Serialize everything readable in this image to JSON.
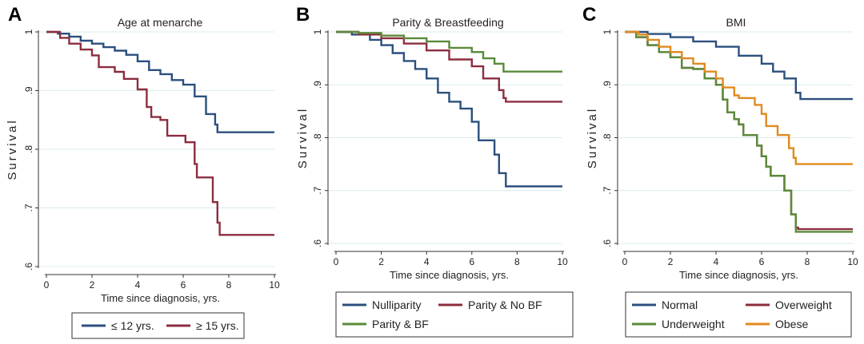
{
  "colors": {
    "navy": "#2b4f7d",
    "maroon": "#8c2d3f",
    "green": "#5a8a3a",
    "orange": "#e08a1e",
    "grid": "#d9ecec",
    "axis": "#333333",
    "text": "#222222"
  },
  "chart_data": [
    {
      "panel_letter": "A",
      "type": "line",
      "title": "Age at menarche",
      "xlabel": "Time since diagnosis, yrs.",
      "ylabel": "Survival",
      "xlim": [
        0,
        10
      ],
      "ylim": [
        0.6,
        1.0
      ],
      "xticks": [
        0,
        2,
        4,
        6,
        8,
        10
      ],
      "yticks": [
        0.6,
        0.7,
        0.8,
        0.9,
        1.0
      ],
      "ytick_labels": [
        ".6",
        ".7",
        ".8",
        ".9",
        "1"
      ],
      "grid": true,
      "legend_columns": 2,
      "series": [
        {
          "name": "≤ 12 yrs.",
          "color": "navy",
          "points": [
            [
              0,
              1.0
            ],
            [
              0.5,
              0.997
            ],
            [
              1.0,
              0.992
            ],
            [
              1.5,
              0.985
            ],
            [
              2.0,
              0.98
            ],
            [
              2.5,
              0.974
            ],
            [
              3.0,
              0.968
            ],
            [
              3.5,
              0.961
            ],
            [
              4.0,
              0.95
            ],
            [
              4.5,
              0.935
            ],
            [
              5.0,
              0.928
            ],
            [
              5.5,
              0.918
            ],
            [
              6.0,
              0.91
            ],
            [
              6.5,
              0.89
            ],
            [
              7.0,
              0.86
            ],
            [
              7.4,
              0.842
            ],
            [
              7.5,
              0.829
            ],
            [
              10.0,
              0.829
            ]
          ]
        },
        {
          "name": "≥ 15 yrs.",
          "color": "maroon",
          "points": [
            [
              0,
              1.0
            ],
            [
              0.6,
              0.99
            ],
            [
              1.0,
              0.98
            ],
            [
              1.5,
              0.97
            ],
            [
              2.0,
              0.96
            ],
            [
              2.3,
              0.94
            ],
            [
              3.0,
              0.932
            ],
            [
              3.4,
              0.92
            ],
            [
              4.0,
              0.902
            ],
            [
              4.4,
              0.872
            ],
            [
              4.6,
              0.855
            ],
            [
              5.0,
              0.85
            ],
            [
              5.3,
              0.823
            ],
            [
              6.0,
              0.823
            ],
            [
              6.1,
              0.812
            ],
            [
              6.5,
              0.775
            ],
            [
              6.6,
              0.752
            ],
            [
              7.2,
              0.752
            ],
            [
              7.3,
              0.71
            ],
            [
              7.5,
              0.675
            ],
            [
              7.6,
              0.654
            ],
            [
              10.0,
              0.654
            ]
          ]
        }
      ]
    },
    {
      "panel_letter": "B",
      "type": "line",
      "title": "Parity & Breastfeeding",
      "xlabel": "Time since diagnosis, yrs.",
      "ylabel": "Survival",
      "xlim": [
        0,
        10
      ],
      "ylim": [
        0.6,
        1.0
      ],
      "xticks": [
        0,
        2,
        4,
        6,
        8,
        10
      ],
      "yticks": [
        0.6,
        0.7,
        0.8,
        0.9,
        1.0
      ],
      "ytick_labels": [
        ".6",
        ".7",
        ".8",
        ".9",
        "1"
      ],
      "grid": true,
      "legend_columns": 2,
      "series": [
        {
          "name": "Nulliparity",
          "color": "navy",
          "points": [
            [
              0,
              1.0
            ],
            [
              0.7,
              0.995
            ],
            [
              1.5,
              0.985
            ],
            [
              2.0,
              0.975
            ],
            [
              2.5,
              0.96
            ],
            [
              3.0,
              0.945
            ],
            [
              3.5,
              0.93
            ],
            [
              4.0,
              0.912
            ],
            [
              4.5,
              0.885
            ],
            [
              5.0,
              0.868
            ],
            [
              5.5,
              0.855
            ],
            [
              6.0,
              0.83
            ],
            [
              6.3,
              0.795
            ],
            [
              6.9,
              0.795
            ],
            [
              7.0,
              0.768
            ],
            [
              7.2,
              0.733
            ],
            [
              7.4,
              0.733
            ],
            [
              7.5,
              0.708
            ],
            [
              10.0,
              0.708
            ]
          ]
        },
        {
          "name": "Parity & No BF",
          "color": "maroon",
          "points": [
            [
              0,
              1.0
            ],
            [
              1.0,
              0.995
            ],
            [
              2.0,
              0.988
            ],
            [
              3.0,
              0.978
            ],
            [
              4.0,
              0.965
            ],
            [
              5.0,
              0.948
            ],
            [
              6.0,
              0.935
            ],
            [
              6.5,
              0.912
            ],
            [
              7.2,
              0.89
            ],
            [
              7.4,
              0.875
            ],
            [
              7.5,
              0.868
            ],
            [
              10.0,
              0.868
            ]
          ]
        },
        {
          "name": "Parity & BF",
          "color": "green",
          "points": [
            [
              0,
              1.0
            ],
            [
              1.0,
              0.998
            ],
            [
              2.0,
              0.993
            ],
            [
              3.0,
              0.988
            ],
            [
              4.0,
              0.982
            ],
            [
              5.0,
              0.97
            ],
            [
              6.0,
              0.962
            ],
            [
              6.5,
              0.95
            ],
            [
              7.0,
              0.94
            ],
            [
              7.4,
              0.925
            ],
            [
              10.0,
              0.925
            ]
          ]
        }
      ]
    },
    {
      "panel_letter": "C",
      "type": "line",
      "title": "BMI",
      "xlabel": "Time since diagnosis, yrs.",
      "ylabel": "Survival",
      "xlim": [
        0,
        10
      ],
      "ylim": [
        0.6,
        1.0
      ],
      "xticks": [
        0,
        2,
        4,
        6,
        8,
        10
      ],
      "yticks": [
        0.6,
        0.7,
        0.8,
        0.9,
        1.0
      ],
      "ytick_labels": [
        ".6",
        ".7",
        ".8",
        ".9",
        "1"
      ],
      "grid": true,
      "legend_columns": 2,
      "series": [
        {
          "name": "Normal",
          "color": "navy",
          "points": [
            [
              0,
              1.0
            ],
            [
              1.0,
              0.996
            ],
            [
              2.0,
              0.99
            ],
            [
              3.0,
              0.982
            ],
            [
              4.0,
              0.972
            ],
            [
              5.0,
              0.955
            ],
            [
              6.0,
              0.94
            ],
            [
              6.5,
              0.925
            ],
            [
              7.0,
              0.912
            ],
            [
              7.5,
              0.885
            ],
            [
              7.7,
              0.873
            ],
            [
              10.0,
              0.873
            ]
          ]
        },
        {
          "name": "Overweight",
          "color": "maroon",
          "points": [
            [
              0,
              1.0
            ],
            [
              0.5,
              0.99
            ],
            [
              1.0,
              0.975
            ],
            [
              1.5,
              0.962
            ],
            [
              2.0,
              0.952
            ],
            [
              2.5,
              0.932
            ],
            [
              3.0,
              0.93
            ],
            [
              3.5,
              0.912
            ],
            [
              4.0,
              0.9
            ],
            [
              4.3,
              0.872
            ],
            [
              4.5,
              0.848
            ],
            [
              4.8,
              0.835
            ],
            [
              5.0,
              0.825
            ],
            [
              5.2,
              0.805
            ],
            [
              5.6,
              0.805
            ],
            [
              5.8,
              0.785
            ],
            [
              6.0,
              0.765
            ],
            [
              6.2,
              0.745
            ],
            [
              6.4,
              0.728
            ],
            [
              6.9,
              0.728
            ],
            [
              7.0,
              0.7
            ],
            [
              7.3,
              0.655
            ],
            [
              7.5,
              0.63
            ],
            [
              7.6,
              0.627
            ],
            [
              10.0,
              0.627
            ]
          ]
        },
        {
          "name": "Underweight",
          "color": "green",
          "points": [
            [
              0,
              1.0
            ],
            [
              0.5,
              0.99
            ],
            [
              1.0,
              0.975
            ],
            [
              1.5,
              0.962
            ],
            [
              2.0,
              0.952
            ],
            [
              2.5,
              0.932
            ],
            [
              3.0,
              0.93
            ],
            [
              3.5,
              0.912
            ],
            [
              4.0,
              0.9
            ],
            [
              4.3,
              0.872
            ],
            [
              4.5,
              0.848
            ],
            [
              4.8,
              0.835
            ],
            [
              5.0,
              0.825
            ],
            [
              5.2,
              0.805
            ],
            [
              5.6,
              0.805
            ],
            [
              5.8,
              0.785
            ],
            [
              6.0,
              0.765
            ],
            [
              6.2,
              0.745
            ],
            [
              6.4,
              0.728
            ],
            [
              6.9,
              0.728
            ],
            [
              7.0,
              0.7
            ],
            [
              7.3,
              0.655
            ],
            [
              7.5,
              0.622
            ],
            [
              10.0,
              0.622
            ]
          ]
        },
        {
          "name": "Obese",
          "color": "orange",
          "points": [
            [
              0,
              1.0
            ],
            [
              0.6,
              0.995
            ],
            [
              1.0,
              0.985
            ],
            [
              1.5,
              0.972
            ],
            [
              2.0,
              0.962
            ],
            [
              2.5,
              0.95
            ],
            [
              3.0,
              0.94
            ],
            [
              3.5,
              0.925
            ],
            [
              4.0,
              0.912
            ],
            [
              4.3,
              0.895
            ],
            [
              4.8,
              0.88
            ],
            [
              5.0,
              0.875
            ],
            [
              5.6,
              0.875
            ],
            [
              5.7,
              0.862
            ],
            [
              6.0,
              0.845
            ],
            [
              6.2,
              0.822
            ],
            [
              6.6,
              0.822
            ],
            [
              6.7,
              0.805
            ],
            [
              7.2,
              0.78
            ],
            [
              7.4,
              0.762
            ],
            [
              7.5,
              0.75
            ],
            [
              10.0,
              0.75
            ]
          ]
        }
      ]
    }
  ]
}
